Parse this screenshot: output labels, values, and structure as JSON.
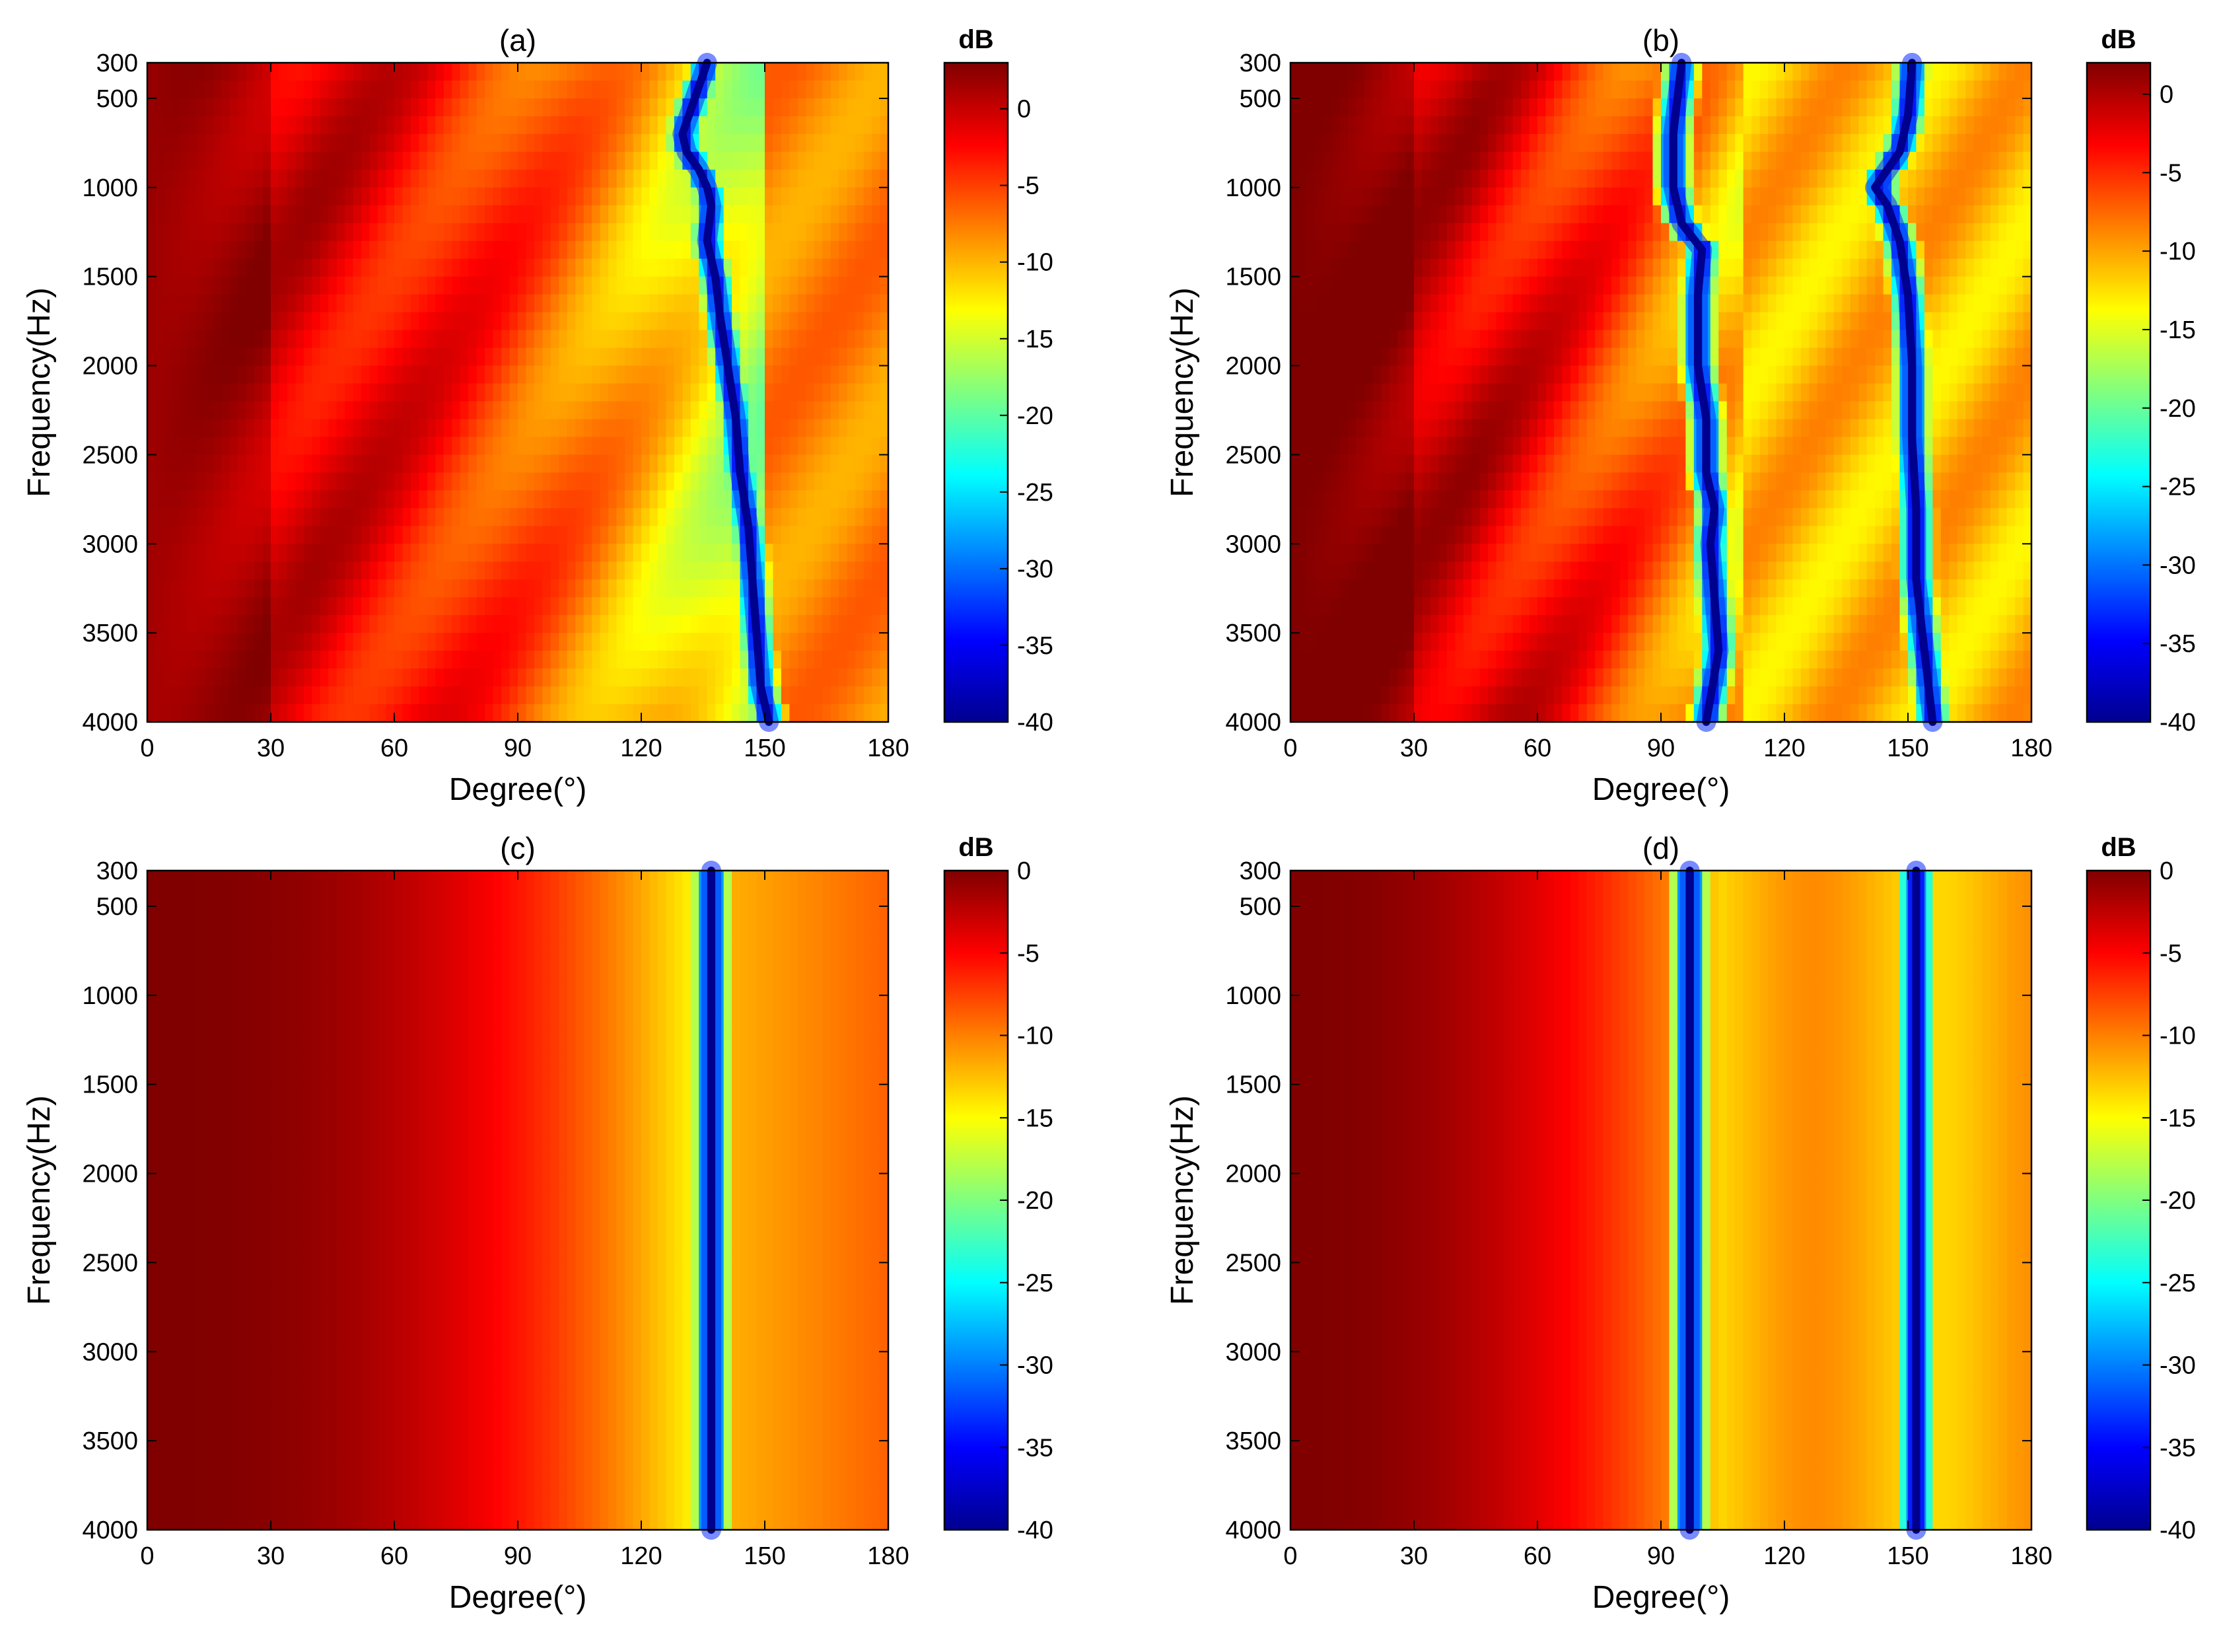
{
  "chart_data": [
    {
      "type": "heatmap",
      "title": "(a)",
      "xlabel": "Degree(°)",
      "ylabel": "Frequency(Hz)",
      "x_ticks": [
        0,
        30,
        60,
        90,
        120,
        150,
        180
      ],
      "y_ticks": [
        300,
        500,
        1000,
        1500,
        2000,
        2500,
        3000,
        3500,
        4000
      ],
      "xlim": [
        0,
        180
      ],
      "ylim": [
        300,
        4000
      ],
      "y_direction": "reversed",
      "colorbar": {
        "unit": "dB",
        "ticks": [
          0,
          -5,
          -10,
          -15,
          -20,
          -25,
          -30,
          -35,
          -40
        ],
        "range": [
          -40,
          3
        ],
        "colormap": "jet"
      },
      "null_curve": [
        [
          300,
          136
        ],
        [
          500,
          133
        ],
        [
          700,
          130
        ],
        [
          800,
          131
        ],
        [
          900,
          134
        ],
        [
          1000,
          136
        ],
        [
          1100,
          137
        ],
        [
          1300,
          136
        ],
        [
          1500,
          138
        ],
        [
          1700,
          139
        ],
        [
          2000,
          141
        ],
        [
          2300,
          143
        ],
        [
          2600,
          144
        ],
        [
          2900,
          146
        ],
        [
          3200,
          147
        ],
        [
          3500,
          148
        ],
        [
          3800,
          149
        ],
        [
          4000,
          151
        ]
      ]
    },
    {
      "type": "heatmap",
      "title": "(b)",
      "xlabel": "Degree(°)",
      "ylabel": "Frequency(Hz)",
      "x_ticks": [
        0,
        30,
        60,
        90,
        120,
        150,
        180
      ],
      "y_ticks": [
        300,
        500,
        1000,
        1500,
        2000,
        2500,
        3000,
        3500,
        4000
      ],
      "xlim": [
        0,
        180
      ],
      "ylim": [
        300,
        4000
      ],
      "y_direction": "reversed",
      "colorbar": {
        "unit": "dB",
        "ticks": [
          0,
          -5,
          -10,
          -15,
          -20,
          -25,
          -30,
          -35,
          -40
        ],
        "range": [
          -40,
          2
        ],
        "colormap": "jet"
      },
      "null_curves": [
        [
          [
            300,
            95
          ],
          [
            700,
            93
          ],
          [
            1000,
            93
          ],
          [
            1200,
            95
          ],
          [
            1350,
            100
          ],
          [
            1600,
            99
          ],
          [
            2000,
            99
          ],
          [
            2300,
            101
          ],
          [
            2600,
            101
          ],
          [
            2800,
            103
          ],
          [
            3000,
            102
          ],
          [
            3300,
            103
          ],
          [
            3600,
            104
          ],
          [
            4000,
            101
          ]
        ],
        [
          [
            300,
            151
          ],
          [
            600,
            150
          ],
          [
            800,
            148
          ],
          [
            1000,
            142
          ],
          [
            1100,
            145
          ],
          [
            1300,
            148
          ],
          [
            1600,
            150
          ],
          [
            2000,
            151
          ],
          [
            2400,
            151
          ],
          [
            2800,
            152
          ],
          [
            3200,
            152
          ],
          [
            3600,
            154
          ],
          [
            4000,
            156
          ]
        ]
      ]
    },
    {
      "type": "heatmap",
      "title": "(c)",
      "xlabel": "Degree(°)",
      "ylabel": "Frequency(Hz)",
      "x_ticks": [
        0,
        30,
        60,
        90,
        120,
        150,
        180
      ],
      "y_ticks": [
        300,
        500,
        1000,
        1500,
        2000,
        2500,
        3000,
        3500,
        4000
      ],
      "xlim": [
        0,
        180
      ],
      "ylim": [
        300,
        4000
      ],
      "y_direction": "reversed",
      "colorbar": {
        "unit": "dB",
        "ticks": [
          0,
          -5,
          -10,
          -15,
          -20,
          -25,
          -30,
          -35,
          -40
        ],
        "range": [
          -40,
          0
        ],
        "colormap": "jet"
      },
      "null_degrees": [
        137
      ]
    },
    {
      "type": "heatmap",
      "title": "(d)",
      "xlabel": "Degree(°)",
      "ylabel": "Frequency(Hz)",
      "x_ticks": [
        0,
        30,
        60,
        90,
        120,
        150,
        180
      ],
      "y_ticks": [
        300,
        500,
        1000,
        1500,
        2000,
        2500,
        3000,
        3500,
        4000
      ],
      "xlim": [
        0,
        180
      ],
      "ylim": [
        300,
        4000
      ],
      "y_direction": "reversed",
      "colorbar": {
        "unit": "dB",
        "ticks": [
          0,
          -5,
          -10,
          -15,
          -20,
          -25,
          -30,
          -35,
          -40
        ],
        "range": [
          -40,
          0
        ],
        "colormap": "jet"
      },
      "null_degrees": [
        97,
        152
      ]
    }
  ]
}
